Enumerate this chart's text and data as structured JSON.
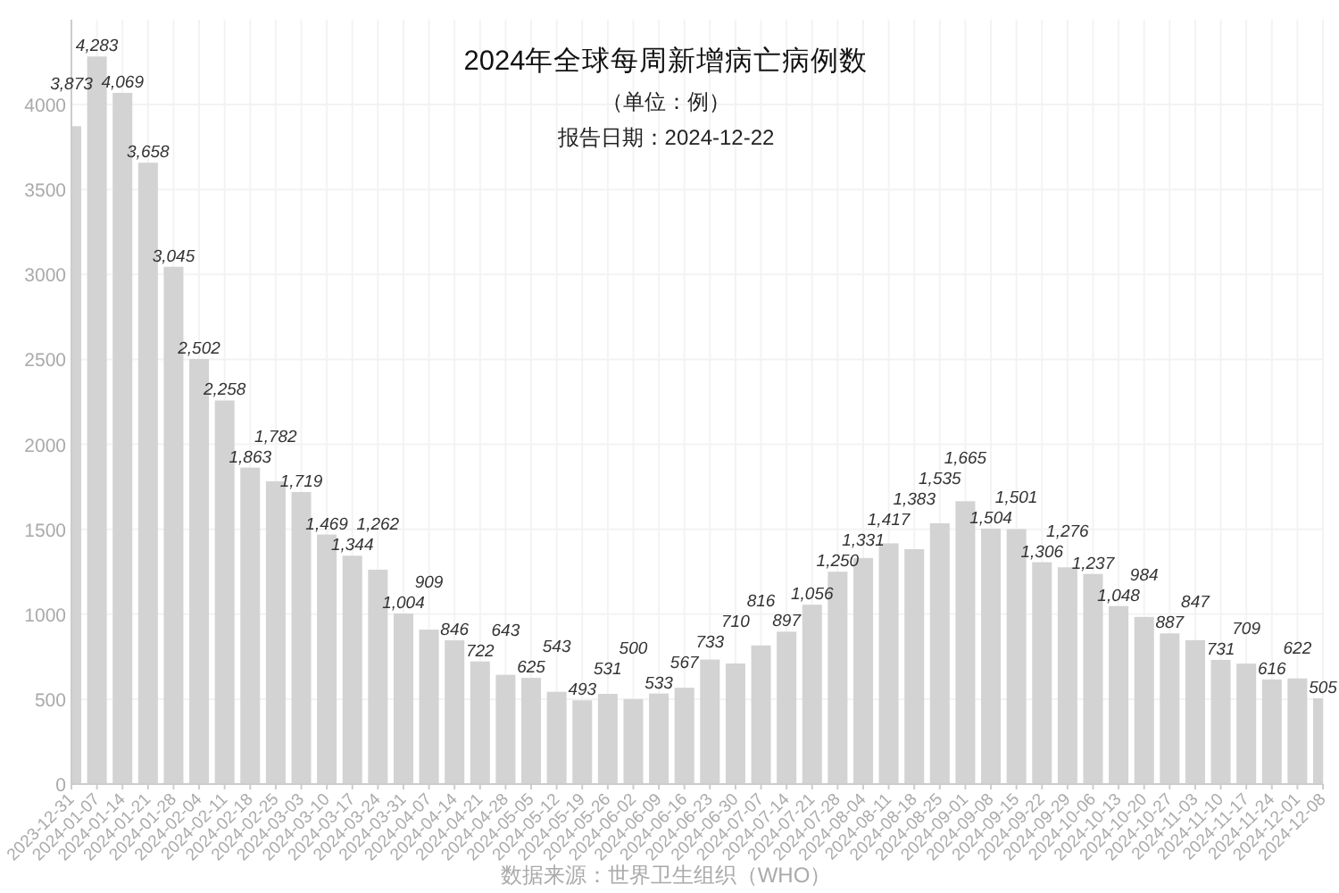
{
  "chart_data": {
    "type": "bar",
    "title": "2024年全球每周新增病亡病例数",
    "subtitle": "（单位：例）",
    "annotations": [
      "报告日期：2024-12-22",
      "数据来源：世界卫生组织（WHO）"
    ],
    "x": [
      "2023-12-31",
      "2024-01-07",
      "2024-01-14",
      "2024-01-21",
      "2024-01-28",
      "2024-02-04",
      "2024-02-11",
      "2024-02-18",
      "2024-02-25",
      "2024-03-03",
      "2024-03-10",
      "2024-03-17",
      "2024-03-24",
      "2024-03-31",
      "2024-04-07",
      "2024-04-14",
      "2024-04-21",
      "2024-04-28",
      "2024-05-05",
      "2024-05-12",
      "2024-05-19",
      "2024-05-26",
      "2024-06-02",
      "2024-06-09",
      "2024-06-16",
      "2024-06-23",
      "2024-06-30",
      "2024-07-07",
      "2024-07-14",
      "2024-07-21",
      "2024-07-28",
      "2024-08-04",
      "2024-08-11",
      "2024-08-18",
      "2024-08-25",
      "2024-09-01",
      "2024-09-08",
      "2024-09-15",
      "2024-09-22",
      "2024-09-29",
      "2024-10-06",
      "2024-10-13",
      "2024-10-20",
      "2024-10-27",
      "2024-11-03",
      "2024-11-10",
      "2024-11-17",
      "2024-11-24",
      "2024-12-01",
      "2024-12-08"
    ],
    "values": [
      3873,
      4283,
      4069,
      3658,
      3045,
      2502,
      2258,
      1863,
      1782,
      1719,
      1469,
      1344,
      1262,
      1004,
      909,
      846,
      722,
      643,
      625,
      543,
      493,
      531,
      500,
      533,
      567,
      733,
      710,
      816,
      897,
      1056,
      1250,
      1331,
      1417,
      1383,
      1535,
      1665,
      1504,
      1501,
      1306,
      1276,
      1237,
      1048,
      984,
      887,
      847,
      731,
      709,
      616,
      622,
      505
    ],
    "value_labels": [
      "3,873",
      "4,283",
      "4,069",
      "3,658",
      "3,045",
      "2,502",
      "2,258",
      "1,863",
      "1,782",
      "1,719",
      "1,469",
      "1,344",
      "1,262",
      "1,004",
      "909",
      "846",
      "722",
      "643",
      "625",
      "543",
      "493",
      "531",
      "500",
      "533",
      "567",
      "733",
      "710",
      "816",
      "897",
      "1,056",
      "1,250",
      "1,331",
      "1,417",
      "1,383",
      "1,535",
      "1,665",
      "1,504",
      "1,501",
      "1,306",
      "1,276",
      "1,237",
      "1,048",
      "984",
      "887",
      "847",
      "731",
      "709",
      "616",
      "622",
      "505"
    ],
    "color": "#d3d3d3",
    "xlim": [
      "2023-12-31",
      "2024-12-08"
    ],
    "xticks": [
      "2023-12-31",
      "2024-01-07",
      "2024-01-14",
      "2024-01-21",
      "2024-01-28",
      "2024-02-04",
      "2024-02-11",
      "2024-02-18",
      "2024-02-25",
      "2024-03-03",
      "2024-03-10",
      "2024-03-17",
      "2024-03-24",
      "2024-03-31",
      "2024-04-07",
      "2024-04-14",
      "2024-04-21",
      "2024-04-28",
      "2024-05-05",
      "2024-05-12",
      "2024-05-19",
      "2024-05-26",
      "2024-06-02",
      "2024-06-09",
      "2024-06-16",
      "2024-06-23",
      "2024-06-30",
      "2024-07-07",
      "2024-07-14",
      "2024-07-21",
      "2024-07-28",
      "2024-08-04",
      "2024-08-11",
      "2024-08-18",
      "2024-08-25",
      "2024-09-01",
      "2024-09-08",
      "2024-09-15",
      "2024-09-22",
      "2024-09-29",
      "2024-10-06",
      "2024-10-13",
      "2024-10-20",
      "2024-10-27",
      "2024-11-03",
      "2024-11-10",
      "2024-11-17",
      "2024-11-24",
      "2024-12-01",
      "2024-12-08"
    ],
    "ylim": [
      0,
      4500
    ],
    "yticks": [
      0,
      500,
      1000,
      1500,
      2000,
      2500,
      3000,
      3500,
      4000
    ],
    "grid": true
  }
}
